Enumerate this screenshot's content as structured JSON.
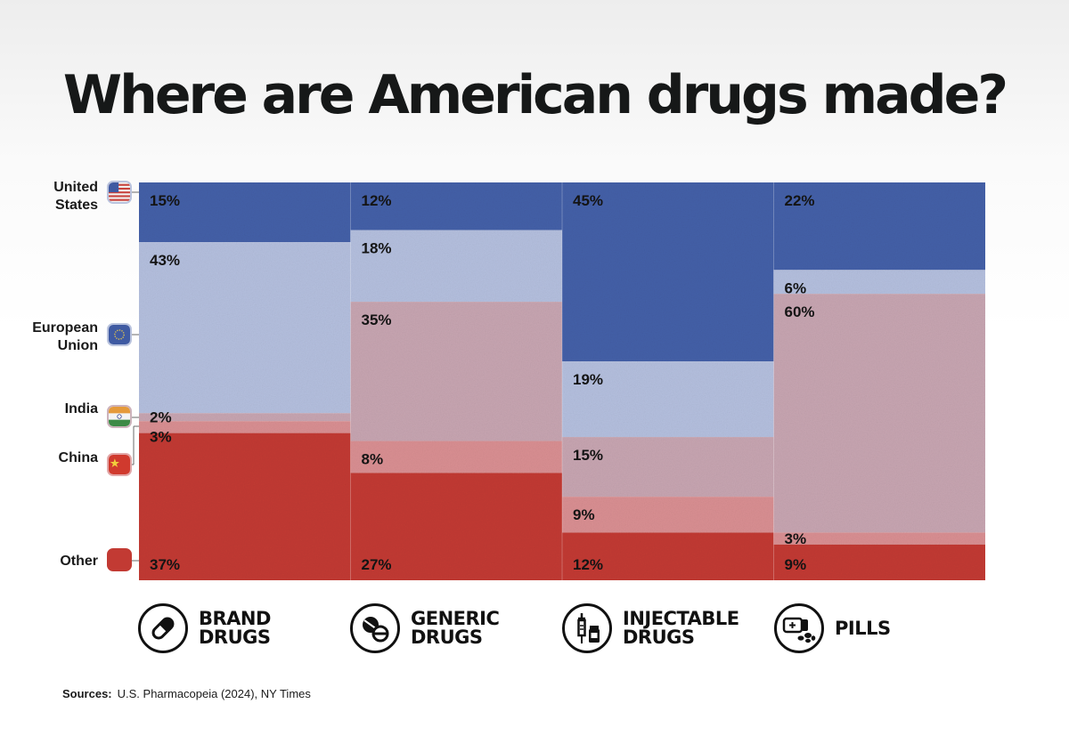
{
  "title": "Where are American drugs made?",
  "legend": [
    {
      "line1": "United",
      "line2": "States",
      "icon": "us-flag-icon"
    },
    {
      "line1": "European",
      "line2": "Union",
      "icon": "eu-flag-icon"
    },
    {
      "line1": "India",
      "line2": "",
      "icon": "india-flag-icon"
    },
    {
      "line1": "China",
      "line2": "",
      "icon": "china-flag-icon"
    },
    {
      "line1": "Other",
      "line2": "",
      "icon": "other-swatch-icon"
    }
  ],
  "categories": [
    {
      "line1": "BRAND",
      "line2": "DRUGS",
      "icon": "capsule-icon"
    },
    {
      "line1": "GENERIC",
      "line2": "DRUGS",
      "icon": "tablets-icon"
    },
    {
      "line1": "INJECTABLE",
      "line2": "DRUGS",
      "icon": "syringe-icon"
    },
    {
      "line1": "PILLS",
      "line2": "",
      "icon": "pills-icon"
    }
  ],
  "sources": {
    "label": "Sources:",
    "text": "U.S. Pharmacopeia (2024), NY Times"
  },
  "chart_data": {
    "type": "bar",
    "stacked": true,
    "normalized": true,
    "categories": [
      "BRAND DRUGS",
      "GENERIC DRUGS",
      "INJECTABLE DRUGS",
      "PILLS"
    ],
    "series": [
      {
        "name": "United States",
        "values": [
          15,
          12,
          45,
          22
        ],
        "labels": [
          "15%",
          "12%",
          "45%",
          "22%"
        ],
        "color": "#4460a8"
      },
      {
        "name": "European Union",
        "values": [
          43,
          18,
          19,
          6
        ],
        "labels": [
          "43%",
          "18%",
          "19%",
          "6%"
        ],
        "color": "#b4bfde"
      },
      {
        "name": "India",
        "values": [
          2,
          35,
          15,
          60
        ],
        "labels": [
          "2%",
          "35%",
          "15%",
          "60%"
        ],
        "color": "#c7a5b1"
      },
      {
        "name": "China",
        "values": [
          3,
          8,
          9,
          3
        ],
        "labels": [
          "3%",
          "8%",
          "9%",
          "3%"
        ],
        "color": "#d98f92"
      },
      {
        "name": "Other",
        "values": [
          37,
          27,
          12,
          9
        ],
        "labels": [
          "37%",
          "27%",
          "12%",
          "9%"
        ],
        "color": "#c23a33"
      }
    ],
    "ylim": [
      0,
      100
    ],
    "legend_position": "left"
  }
}
